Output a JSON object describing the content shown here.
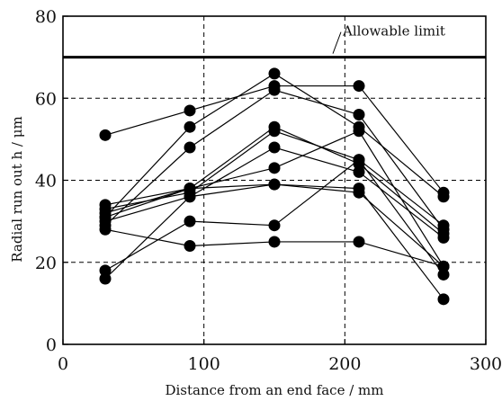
{
  "chart_data": {
    "type": "line",
    "xlabel": "Distance from an end face / mm",
    "ylabel": "Radial run out h / μm",
    "xlim": [
      0,
      300
    ],
    "ylim": [
      0,
      80
    ],
    "xticks": [
      0,
      100,
      200,
      300
    ],
    "yticks": [
      0,
      20,
      40,
      60,
      80
    ],
    "grid": "dashed",
    "reference_line": {
      "label": "Allowable limit",
      "y": 70
    },
    "x": [
      30,
      90,
      150,
      210,
      270
    ],
    "series": [
      {
        "values": [
          51,
          57,
          63,
          63,
          37
        ]
      },
      {
        "values": [
          31,
          53,
          66,
          53,
          36
        ]
      },
      {
        "values": [
          29,
          48,
          62,
          56,
          28
        ]
      },
      {
        "values": [
          33,
          37,
          52,
          45,
          29
        ]
      },
      {
        "values": [
          32,
          38,
          53,
          44,
          27
        ]
      },
      {
        "values": [
          30,
          36,
          48,
          42,
          26
        ]
      },
      {
        "values": [
          34,
          38,
          43,
          52,
          19
        ]
      },
      {
        "values": [
          31,
          38,
          39,
          37,
          19
        ]
      },
      {
        "values": [
          18,
          30,
          29,
          45,
          17
        ]
      },
      {
        "values": [
          16,
          36,
          39,
          38,
          11
        ]
      },
      {
        "values": [
          28,
          24,
          25,
          25,
          19
        ]
      }
    ]
  }
}
